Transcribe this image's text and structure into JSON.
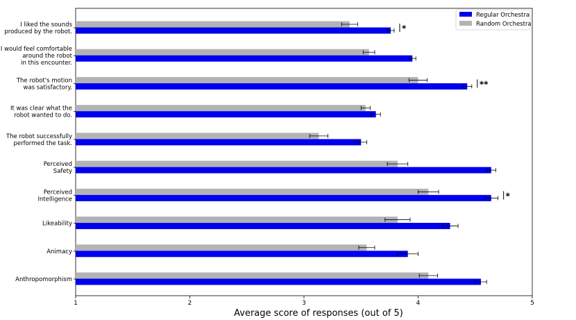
{
  "chart_data": {
    "type": "bar",
    "orientation": "horizontal",
    "xlabel": "Average score of responses (out of 5)",
    "xlim": [
      1,
      5
    ],
    "xticks": [
      1,
      2,
      3,
      4,
      5
    ],
    "legend_position": "top-right",
    "categories": [
      [
        "I liked the sounds",
        "produced by the robot."
      ],
      [
        "I would feel comfortable",
        "around the robot",
        "in this encounter."
      ],
      [
        "The robot's motion",
        "was satisfactory."
      ],
      [
        "It was clear what the",
        "robot wanted to do."
      ],
      [
        "The robot successfully",
        "performed the task."
      ],
      [
        "Perceived",
        "Safety"
      ],
      [
        "Perceived",
        "Intelligence"
      ],
      [
        "Likeability"
      ],
      [
        "Animacy"
      ],
      [
        "Anthropomorphism"
      ]
    ],
    "series": [
      {
        "name": "Regular Orchestra",
        "color": "#0000ee",
        "values": [
          3.76,
          3.95,
          4.43,
          3.63,
          3.5,
          4.64,
          4.64,
          4.28,
          3.91,
          4.55
        ],
        "errors": [
          0.03,
          0.03,
          0.04,
          0.04,
          0.05,
          0.04,
          0.06,
          0.07,
          0.09,
          0.05
        ]
      },
      {
        "name": "Random Orchestra",
        "color": "#b3b3b3",
        "values": [
          3.4,
          3.57,
          4.0,
          3.54,
          3.13,
          3.82,
          4.09,
          3.82,
          3.55,
          4.09
        ],
        "errors": [
          0.07,
          0.05,
          0.08,
          0.04,
          0.08,
          0.09,
          0.09,
          0.11,
          0.07,
          0.08
        ]
      }
    ],
    "significance": [
      {
        "category_index": 0,
        "label": "*"
      },
      {
        "category_index": 2,
        "label": "**"
      },
      {
        "category_index": 6,
        "label": "*"
      }
    ]
  }
}
